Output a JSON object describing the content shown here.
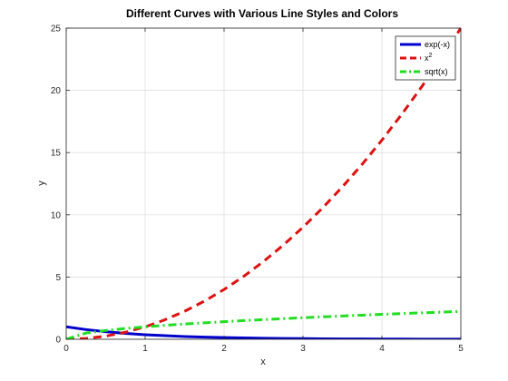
{
  "chart_data": {
    "type": "line",
    "title": "Different Curves with Various Line Styles and Colors",
    "xlabel": "x",
    "ylabel": "y",
    "xlim": [
      0,
      5
    ],
    "ylim": [
      0,
      25
    ],
    "xticks": [
      0,
      1,
      2,
      3,
      4,
      5
    ],
    "yticks": [
      0,
      5,
      10,
      15,
      20,
      25
    ],
    "grid": true,
    "legend_position": "top-right",
    "x": [
      0,
      0.25,
      0.5,
      0.75,
      1,
      1.25,
      1.5,
      1.75,
      2,
      2.25,
      2.5,
      2.75,
      3,
      3.25,
      3.5,
      3.75,
      4,
      4.25,
      4.5,
      4.75,
      5
    ],
    "series": [
      {
        "name": "exp(-x)",
        "color": "#0000cc",
        "style": "solid",
        "values": [
          1.0,
          0.779,
          0.607,
          0.472,
          0.368,
          0.287,
          0.223,
          0.174,
          0.135,
          0.105,
          0.082,
          0.064,
          0.05,
          0.039,
          0.03,
          0.024,
          0.018,
          0.014,
          0.011,
          0.009,
          0.007
        ]
      },
      {
        "name": "x",
        "name_superscript": "2",
        "color": "#dd1111",
        "style": "dashed",
        "values": [
          0,
          0.0625,
          0.25,
          0.5625,
          1,
          1.5625,
          2.25,
          3.0625,
          4,
          5.0625,
          6.25,
          7.5625,
          9,
          10.5625,
          12.25,
          14.0625,
          16,
          18.0625,
          20.25,
          22.5625,
          25
        ]
      },
      {
        "name": "sqrt(x)",
        "color": "#22dd22",
        "style": "dashdot",
        "values": [
          0,
          0.5,
          0.707,
          0.866,
          1.0,
          1.118,
          1.225,
          1.323,
          1.414,
          1.5,
          1.581,
          1.658,
          1.732,
          1.803,
          1.871,
          1.936,
          2.0,
          2.062,
          2.121,
          2.179,
          2.236
        ]
      }
    ]
  }
}
